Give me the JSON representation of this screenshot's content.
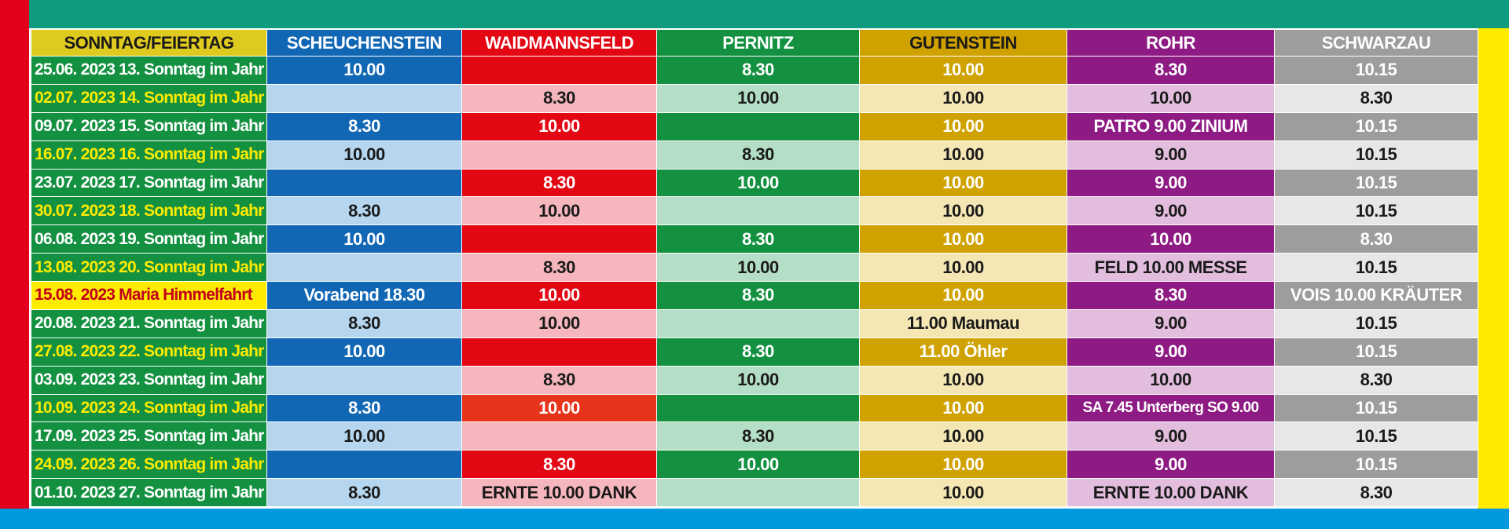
{
  "header": [
    "SONNTAG/FEIERTAG",
    "SCHEUCHENSTEIN",
    "WAIDMANNSFELD",
    "PERNITZ",
    "GUTENSTEIN",
    "ROHR",
    "SCHWARZAU"
  ],
  "rows": [
    [
      "25.06. 2023 13. Sonntag im Jahr",
      "10.00",
      "",
      "8.30",
      "10.00",
      "8.30",
      "10.15"
    ],
    [
      "02.07. 2023 14. Sonntag im Jahr",
      "",
      "8.30",
      "10.00",
      "10.00",
      "10.00",
      "8.30"
    ],
    [
      "09.07. 2023 15. Sonntag im Jahr",
      "8.30",
      "10.00",
      "",
      "10.00",
      "PATRO 9.00 ZINIUM",
      "10.15"
    ],
    [
      "16.07. 2023 16. Sonntag im Jahr",
      "10.00",
      "",
      "8.30",
      "10.00",
      "9.00",
      "10.15"
    ],
    [
      "23.07. 2023 17. Sonntag im Jahr",
      "",
      "8.30",
      "10.00",
      "10.00",
      "9.00",
      "10.15"
    ],
    [
      "30.07. 2023 18. Sonntag im Jahr",
      "8.30",
      "10.00",
      "",
      "10.00",
      "9.00",
      "10.15"
    ],
    [
      "06.08. 2023 19. Sonntag im Jahr",
      "10.00",
      "",
      "8.30",
      "10.00",
      "10.00",
      "8.30"
    ],
    [
      "13.08. 2023 20. Sonntag im Jahr",
      "",
      "8.30",
      "10.00",
      "10.00",
      "FELD 10.00 MESSE",
      "10.15"
    ],
    [
      "15.08. 2023 Maria Himmelfahrt",
      "Vorabend 18.30",
      "10.00",
      "8.30",
      "10.00",
      "8.30",
      "VOIS 10.00 KRÄUTER"
    ],
    [
      "20.08. 2023 21. Sonntag im Jahr",
      "8.30",
      "10.00",
      "",
      "11.00 Maumau",
      "9.00",
      "10.15"
    ],
    [
      "27.08. 2023 22. Sonntag im Jahr",
      "10.00",
      "",
      "8.30",
      "11.00 Öhler",
      "9.00",
      "10.15"
    ],
    [
      "03.09. 2023 23. Sonntag im Jahr",
      "",
      "8.30",
      "10.00",
      "10.00",
      "10.00",
      "8.30"
    ],
    [
      "10.09. 2023 24. Sonntag im Jahr",
      "8.30",
      "10.00",
      "",
      "10.00",
      "SA 7.45 Unterberg SO 9.00",
      "10.15"
    ],
    [
      "17.09. 2023 25. Sonntag im Jahr",
      "10.00",
      "",
      "8.30",
      "10.00",
      "9.00",
      "10.15"
    ],
    [
      "24.09. 2023 26. Sonntag im Jahr",
      "",
      "8.30",
      "10.00",
      "10.00",
      "9.00",
      "10.15"
    ],
    [
      "01.10. 2023 27. Sonntag im Jahr",
      "8.30",
      "ERNTE 10.00 DANK",
      "",
      "10.00",
      "ERNTE 10.00 DANK",
      "8.30"
    ]
  ],
  "colors": {
    "top_bar": "#0e9b7e",
    "left_bar": "#e3001b",
    "right_bar": "#ffeb00",
    "bottom_bar": "#0099dd"
  }
}
